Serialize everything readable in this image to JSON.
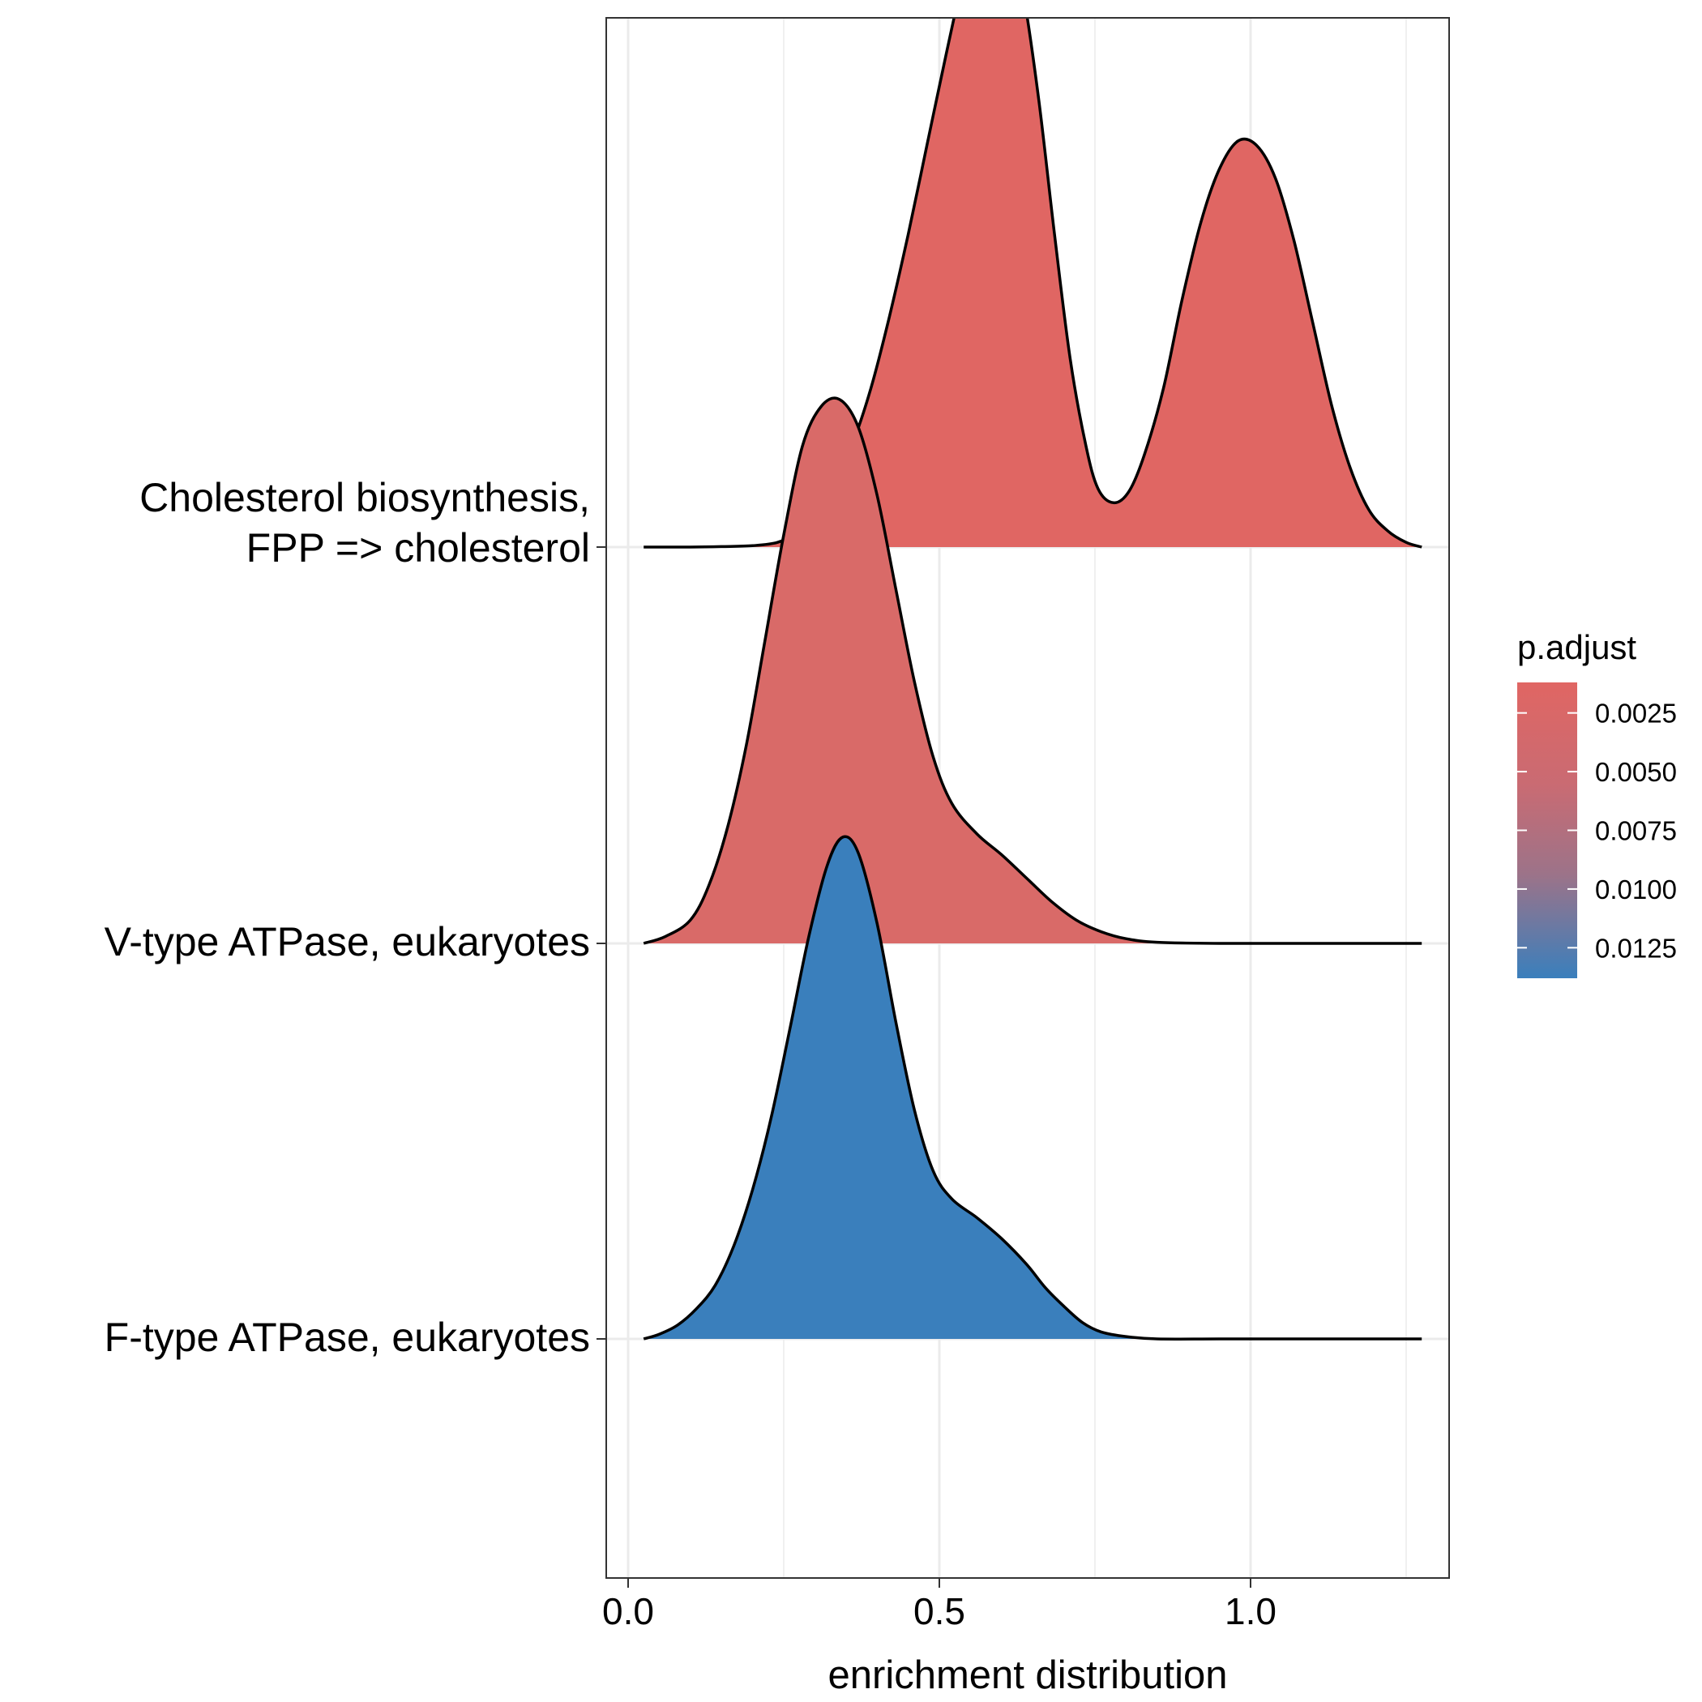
{
  "chart_data": {
    "type": "ridgeline",
    "title": "",
    "xlabel": "enrichment distribution",
    "ylabel": "",
    "xlim": [
      -0.035,
      1.33
    ],
    "x_ticks": [
      {
        "value": 0.0,
        "label": "0.0"
      },
      {
        "value": 0.5,
        "label": "0.5"
      },
      {
        "value": 1.0,
        "label": "1.0"
      }
    ],
    "grid": true,
    "density_range": [
      0.025,
      1.275
    ],
    "series": [
      {
        "name": "F-type ATPase, eukaryotes",
        "label_lines": [
          "F-type ATPase, eukaryotes"
        ],
        "p_adjust": 0.0135,
        "color": "#3A7FBC",
        "points": [
          [
            0.025,
            0.0
          ],
          [
            0.05,
            0.02
          ],
          [
            0.08,
            0.06
          ],
          [
            0.11,
            0.13
          ],
          [
            0.14,
            0.23
          ],
          [
            0.17,
            0.4
          ],
          [
            0.2,
            0.64
          ],
          [
            0.23,
            0.95
          ],
          [
            0.26,
            1.33
          ],
          [
            0.29,
            1.72
          ],
          [
            0.32,
            2.03
          ],
          [
            0.345,
            2.15
          ],
          [
            0.37,
            2.08
          ],
          [
            0.4,
            1.78
          ],
          [
            0.43,
            1.36
          ],
          [
            0.46,
            0.98
          ],
          [
            0.49,
            0.72
          ],
          [
            0.52,
            0.6
          ],
          [
            0.56,
            0.52
          ],
          [
            0.6,
            0.43
          ],
          [
            0.64,
            0.32
          ],
          [
            0.67,
            0.22
          ],
          [
            0.7,
            0.14
          ],
          [
            0.73,
            0.07
          ],
          [
            0.76,
            0.03
          ],
          [
            0.8,
            0.01
          ],
          [
            0.85,
            0.0
          ],
          [
            0.95,
            0.0
          ],
          [
            1.1,
            0.0
          ],
          [
            1.275,
            0.0
          ]
        ]
      },
      {
        "name": "V-type ATPase, eukaryotes",
        "label_lines": [
          "V-type ATPase, eukaryotes"
        ],
        "p_adjust": 0.0033,
        "color": "#D96A68",
        "points": [
          [
            0.025,
            0.0
          ],
          [
            0.06,
            0.03
          ],
          [
            0.1,
            0.1
          ],
          [
            0.13,
            0.25
          ],
          [
            0.16,
            0.5
          ],
          [
            0.19,
            0.85
          ],
          [
            0.22,
            1.3
          ],
          [
            0.25,
            1.75
          ],
          [
            0.28,
            2.13
          ],
          [
            0.31,
            2.3
          ],
          [
            0.34,
            2.33
          ],
          [
            0.37,
            2.21
          ],
          [
            0.4,
            1.92
          ],
          [
            0.43,
            1.52
          ],
          [
            0.46,
            1.12
          ],
          [
            0.49,
            0.8
          ],
          [
            0.52,
            0.6
          ],
          [
            0.56,
            0.47
          ],
          [
            0.6,
            0.38
          ],
          [
            0.64,
            0.28
          ],
          [
            0.68,
            0.18
          ],
          [
            0.72,
            0.1
          ],
          [
            0.76,
            0.05
          ],
          [
            0.8,
            0.02
          ],
          [
            0.85,
            0.005
          ],
          [
            0.95,
            0.0
          ],
          [
            1.1,
            0.0
          ],
          [
            1.275,
            0.0
          ]
        ]
      },
      {
        "name": "Cholesterol biosynthesis,\nFPP => cholesterol",
        "label_lines": [
          "Cholesterol biosynthesis,",
          "FPP => cholesterol"
        ],
        "p_adjust": 0.0017,
        "color": "#E06663",
        "points": [
          [
            0.025,
            0.0
          ],
          [
            0.1,
            0.0
          ],
          [
            0.15,
            0.002
          ],
          [
            0.2,
            0.006
          ],
          [
            0.24,
            0.02
          ],
          [
            0.27,
            0.06
          ],
          [
            0.3,
            0.14
          ],
          [
            0.33,
            0.27
          ],
          [
            0.36,
            0.44
          ],
          [
            0.39,
            0.68
          ],
          [
            0.42,
            0.99
          ],
          [
            0.45,
            1.34
          ],
          [
            0.48,
            1.72
          ],
          [
            0.51,
            2.1
          ],
          [
            0.54,
            2.46
          ],
          [
            0.56,
            2.65
          ],
          [
            0.585,
            2.76
          ],
          [
            0.61,
            2.67
          ],
          [
            0.635,
            2.37
          ],
          [
            0.66,
            1.91
          ],
          [
            0.685,
            1.34
          ],
          [
            0.71,
            0.81
          ],
          [
            0.735,
            0.44
          ],
          [
            0.755,
            0.25
          ],
          [
            0.78,
            0.19
          ],
          [
            0.805,
            0.24
          ],
          [
            0.83,
            0.4
          ],
          [
            0.86,
            0.68
          ],
          [
            0.89,
            1.06
          ],
          [
            0.92,
            1.39
          ],
          [
            0.95,
            1.62
          ],
          [
            0.98,
            1.74
          ],
          [
            1.01,
            1.72
          ],
          [
            1.04,
            1.58
          ],
          [
            1.07,
            1.31
          ],
          [
            1.1,
            0.96
          ],
          [
            1.13,
            0.61
          ],
          [
            1.16,
            0.34
          ],
          [
            1.19,
            0.16
          ],
          [
            1.22,
            0.07
          ],
          [
            1.25,
            0.02
          ],
          [
            1.275,
            0.0
          ]
        ]
      }
    ],
    "legend": {
      "title": "p.adjust",
      "placement": "right",
      "min": 0.0012,
      "max": 0.0138,
      "color_low": "#E06663",
      "color_high": "#3A7FBC",
      "ticks": [
        {
          "value": 0.0025,
          "label": "0.0025"
        },
        {
          "value": 0.005,
          "label": "0.0050"
        },
        {
          "value": 0.0075,
          "label": "0.0075"
        },
        {
          "value": 0.01,
          "label": "0.0100"
        },
        {
          "value": 0.0125,
          "label": "0.0125"
        }
      ]
    }
  }
}
